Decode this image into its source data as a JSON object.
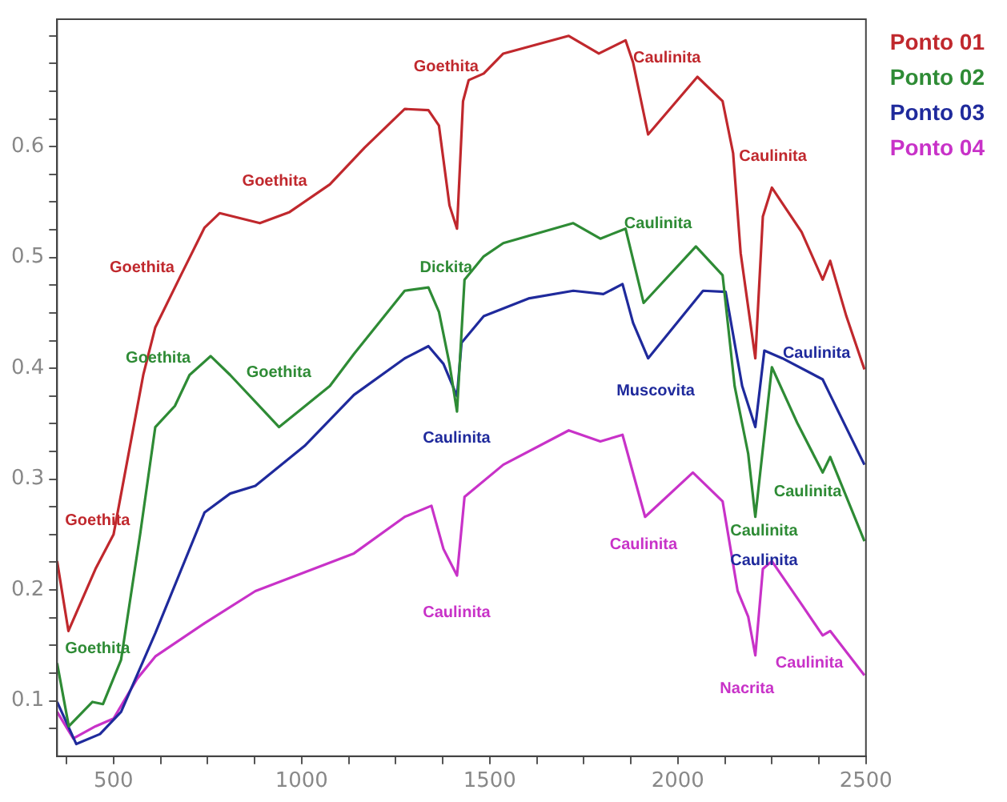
{
  "chart_data": {
    "type": "line",
    "xlim": [
      350,
      2500
    ],
    "ylim": [
      0.05,
      0.715
    ],
    "xticks": [
      {
        "value": 375,
        "label": null
      },
      500,
      {
        "value": 625,
        "label": null
      },
      {
        "value": 750,
        "label": null
      },
      {
        "value": 875,
        "label": null
      },
      1000,
      {
        "value": 1125,
        "label": null
      },
      {
        "value": 1250,
        "label": null
      },
      {
        "value": 1375,
        "label": null
      },
      1500,
      {
        "value": 1625,
        "label": null
      },
      {
        "value": 1750,
        "label": null
      },
      {
        "value": 1875,
        "label": null
      },
      2000,
      {
        "value": 2125,
        "label": null
      },
      {
        "value": 2250,
        "label": null
      },
      {
        "value": 2375,
        "label": null
      },
      2500
    ],
    "yticks": [
      {
        "value": 0.075,
        "label": null
      },
      0.1,
      {
        "value": 0.125,
        "label": null
      },
      {
        "value": 0.15,
        "label": null
      },
      {
        "value": 0.175,
        "label": null
      },
      0.2,
      {
        "value": 0.225,
        "label": null
      },
      {
        "value": 0.25,
        "label": null
      },
      {
        "value": 0.275,
        "label": null
      },
      0.3,
      {
        "value": 0.325,
        "label": null
      },
      {
        "value": 0.35,
        "label": null
      },
      {
        "value": 0.375,
        "label": null
      },
      0.4,
      {
        "value": 0.425,
        "label": null
      },
      {
        "value": 0.45,
        "label": null
      },
      {
        "value": 0.475,
        "label": null
      },
      0.5,
      {
        "value": 0.525,
        "label": null
      },
      {
        "value": 0.55,
        "label": null
      },
      {
        "value": 0.575,
        "label": null
      },
      0.6,
      {
        "value": 0.625,
        "label": null
      },
      {
        "value": 0.65,
        "label": null
      },
      {
        "value": 0.675,
        "label": null
      },
      {
        "value": 0.7,
        "label": null
      }
    ],
    "grid": false,
    "legend": "top right",
    "series": [
      {
        "name": "Ponto 01",
        "color": "#c0282d",
        "x": [
          350,
          380,
          452,
          500,
          579,
          611,
          679,
          742,
          782,
          889,
          968,
          1075,
          1167,
          1274,
          1337,
          1365,
          1393,
          1413,
          1429,
          1444,
          1484,
          1536,
          1710,
          1790,
          1861,
          1881,
          1921,
          2052,
          2119,
          2147,
          2167,
          2206,
          2226,
          2250,
          2329,
          2385,
          2405,
          2448,
          2496
        ],
        "values": [
          0.226,
          0.163,
          0.219,
          0.25,
          0.394,
          0.437,
          0.484,
          0.527,
          0.54,
          0.531,
          0.541,
          0.566,
          0.599,
          0.634,
          0.633,
          0.619,
          0.547,
          0.526,
          0.641,
          0.66,
          0.666,
          0.684,
          0.7,
          0.684,
          0.696,
          0.676,
          0.611,
          0.663,
          0.641,
          0.594,
          0.504,
          0.409,
          0.537,
          0.563,
          0.523,
          0.48,
          0.497,
          0.447,
          0.399
        ]
      },
      {
        "name": "Ponto 02",
        "color": "#2e8b35",
        "x": [
          350,
          381,
          444,
          472,
          520,
          571,
          611,
          663,
          702,
          758,
          810,
          940,
          1075,
          1139,
          1274,
          1337,
          1365,
          1393,
          1413,
          1433,
          1484,
          1536,
          1722,
          1794,
          1861,
          1909,
          2048,
          2119,
          2151,
          2187,
          2206,
          2250,
          2317,
          2385,
          2405,
          2496
        ],
        "values": [
          0.134,
          0.077,
          0.099,
          0.097,
          0.137,
          0.251,
          0.347,
          0.366,
          0.394,
          0.411,
          0.394,
          0.347,
          0.384,
          0.413,
          0.47,
          0.473,
          0.451,
          0.404,
          0.361,
          0.48,
          0.501,
          0.513,
          0.531,
          0.517,
          0.526,
          0.459,
          0.51,
          0.484,
          0.384,
          0.323,
          0.266,
          0.401,
          0.351,
          0.306,
          0.32,
          0.244
        ]
      },
      {
        "name": "Ponto 03",
        "color": "#1f2a9c",
        "x": [
          350,
          401,
          464,
          520,
          611,
          742,
          810,
          877,
          1008,
          1139,
          1274,
          1337,
          1377,
          1413,
          1425,
          1484,
          1603,
          1722,
          1802,
          1853,
          1881,
          1921,
          2067,
          2127,
          2171,
          2206,
          2230,
          2278,
          2385,
          2405,
          2496
        ],
        "values": [
          0.099,
          0.061,
          0.07,
          0.09,
          0.161,
          0.27,
          0.287,
          0.294,
          0.33,
          0.376,
          0.409,
          0.42,
          0.404,
          0.375,
          0.423,
          0.447,
          0.463,
          0.47,
          0.467,
          0.476,
          0.441,
          0.409,
          0.47,
          0.469,
          0.384,
          0.347,
          0.416,
          0.409,
          0.39,
          0.376,
          0.313
        ]
      },
      {
        "name": "Ponto 04",
        "color": "#c832c8",
        "x": [
          350,
          393,
          452,
          500,
          563,
          611,
          742,
          877,
          1008,
          1139,
          1274,
          1345,
          1377,
          1413,
          1433,
          1536,
          1710,
          1794,
          1853,
          1913,
          2040,
          2119,
          2159,
          2187,
          2206,
          2226,
          2250,
          2329,
          2385,
          2405,
          2496
        ],
        "values": [
          0.09,
          0.066,
          0.077,
          0.084,
          0.12,
          0.14,
          0.17,
          0.199,
          0.216,
          0.233,
          0.266,
          0.276,
          0.237,
          0.213,
          0.284,
          0.313,
          0.344,
          0.334,
          0.34,
          0.266,
          0.306,
          0.28,
          0.199,
          0.176,
          0.141,
          0.219,
          0.226,
          0.187,
          0.159,
          0.163,
          0.123
        ]
      }
    ],
    "annotations": [
      "Goethita",
      "Goethita",
      "Goethita",
      "Goethita",
      "Caulinita",
      "Caulinita",
      "Goethita",
      "Goethita",
      "Goethita",
      "Dickita",
      "Caulinita",
      "Caulinita",
      "Caulinita",
      "Caulinita",
      "Muscovita",
      "Caulinita",
      "Caulinita",
      "Caulinita",
      "Caulinita",
      "Nacrita",
      "Caulinita"
    ]
  }
}
